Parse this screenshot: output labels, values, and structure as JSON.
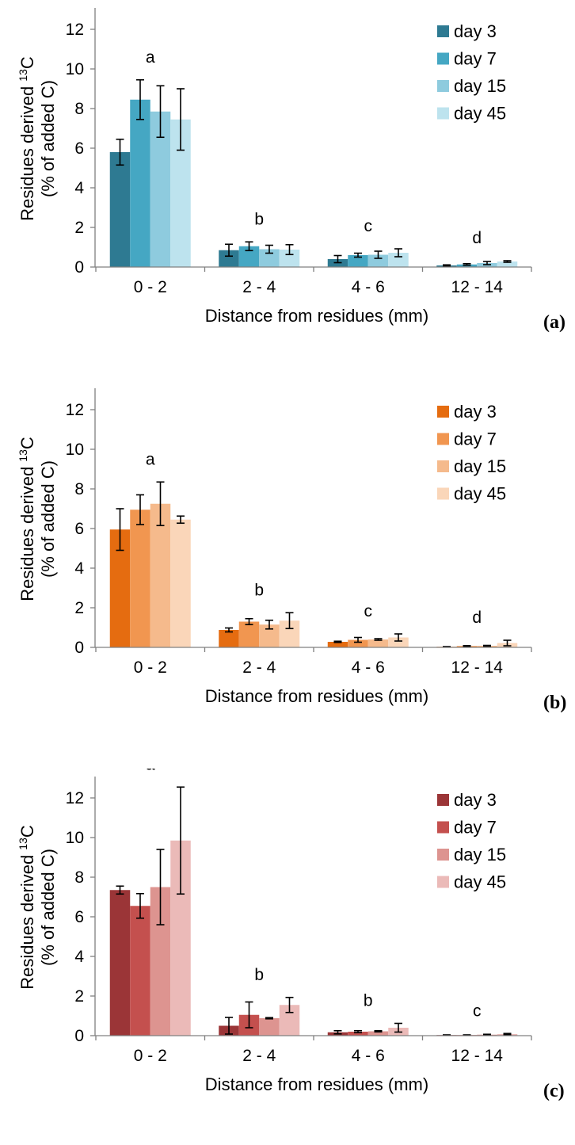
{
  "chart_data": [
    {
      "type": "bar",
      "panel_label": "(a)",
      "categories": [
        "0 - 2",
        "2 - 4",
        "4 - 6",
        "12 - 14"
      ],
      "xlabel": "Distance from residues  (mm)",
      "ylabel_line1_prefix": "Residues derived ",
      "ylabel_line1_sup": "13",
      "ylabel_line1_suffix": "C",
      "ylabel_line2": "(% of added C)",
      "ylim": [
        0,
        13
      ],
      "yticks": [
        0,
        2,
        4,
        6,
        8,
        10,
        12
      ],
      "legend_position": "top-right",
      "significance_letters": [
        "a",
        "b",
        "c",
        "d"
      ],
      "series": [
        {
          "name": "day 3",
          "color": "#2e7a92",
          "values": [
            5.8,
            0.85,
            0.4,
            0.08
          ],
          "errors": [
            0.65,
            0.3,
            0.18,
            0.03
          ]
        },
        {
          "name": "day 7",
          "color": "#45a7c3",
          "values": [
            8.45,
            1.05,
            0.6,
            0.13
          ],
          "errors": [
            1.0,
            0.22,
            0.1,
            0.04
          ]
        },
        {
          "name": "day 15",
          "color": "#8ecbde",
          "values": [
            7.85,
            0.9,
            0.62,
            0.2
          ],
          "errors": [
            1.3,
            0.2,
            0.18,
            0.08
          ]
        },
        {
          "name": "day 45",
          "color": "#bde3ee",
          "values": [
            7.45,
            0.88,
            0.72,
            0.28
          ],
          "errors": [
            1.55,
            0.25,
            0.2,
            0.04
          ]
        }
      ]
    },
    {
      "type": "bar",
      "panel_label": "(b)",
      "categories": [
        "0 - 2",
        "2 - 4",
        "4 - 6",
        "12 - 14"
      ],
      "xlabel": "Distance from residues  (mm)",
      "ylabel_line1_prefix": "Residues derived ",
      "ylabel_line1_sup": "13",
      "ylabel_line1_suffix": "C",
      "ylabel_line2": "(% of added C)",
      "ylim": [
        0,
        13
      ],
      "yticks": [
        0,
        2,
        4,
        6,
        8,
        10,
        12
      ],
      "legend_position": "top-right",
      "significance_letters": [
        "a",
        "b",
        "c",
        "d"
      ],
      "series": [
        {
          "name": "day 3",
          "color": "#e56c10",
          "values": [
            5.95,
            0.88,
            0.28,
            0.03
          ],
          "errors": [
            1.05,
            0.1,
            0.03,
            0.01
          ]
        },
        {
          "name": "day 7",
          "color": "#f19650",
          "values": [
            6.95,
            1.3,
            0.38,
            0.07
          ],
          "errors": [
            0.75,
            0.15,
            0.12,
            0.02
          ]
        },
        {
          "name": "day 15",
          "color": "#f5ba8c",
          "values": [
            7.25,
            1.15,
            0.4,
            0.08
          ],
          "errors": [
            1.1,
            0.22,
            0.04,
            0.02
          ]
        },
        {
          "name": "day 45",
          "color": "#fad6b9",
          "values": [
            6.45,
            1.35,
            0.5,
            0.22
          ],
          "errors": [
            0.18,
            0.4,
            0.18,
            0.14
          ]
        }
      ]
    },
    {
      "type": "bar",
      "panel_label": "(c)",
      "categories": [
        "0 - 2",
        "2 - 4",
        "4 - 6",
        "12 - 14"
      ],
      "xlabel": "Distance from residues  (mm)",
      "ylabel_line1_prefix": "Residues derived ",
      "ylabel_line1_sup": "13",
      "ylabel_line1_suffix": "C",
      "ylabel_line2": "(% of added C)",
      "ylim": [
        0,
        13
      ],
      "yticks": [
        0,
        2,
        4,
        6,
        8,
        10,
        12
      ],
      "legend_position": "top-right",
      "significance_letters": [
        "a",
        "b",
        "b",
        "c"
      ],
      "series": [
        {
          "name": "day 3",
          "color": "#9b3537",
          "values": [
            7.35,
            0.5,
            0.17,
            0.03
          ],
          "errors": [
            0.2,
            0.42,
            0.08,
            0.01
          ]
        },
        {
          "name": "day 7",
          "color": "#c4504e",
          "values": [
            6.55,
            1.05,
            0.2,
            0.03
          ],
          "errors": [
            0.62,
            0.65,
            0.05,
            0.01
          ]
        },
        {
          "name": "day 15",
          "color": "#dd9490",
          "values": [
            7.5,
            0.88,
            0.22,
            0.05
          ],
          "errors": [
            1.9,
            0.03,
            0.03,
            0.02
          ]
        },
        {
          "name": "day 45",
          "color": "#ebbab8",
          "values": [
            9.85,
            1.55,
            0.4,
            0.08
          ],
          "errors": [
            2.7,
            0.38,
            0.22,
            0.03
          ]
        }
      ]
    }
  ]
}
